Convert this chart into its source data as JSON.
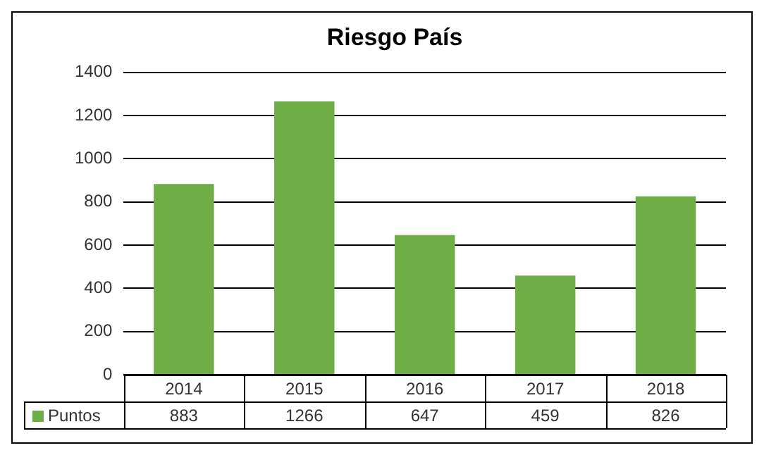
{
  "chart_data": {
    "type": "bar",
    "title": "Riesgo País",
    "categories": [
      "2014",
      "2015",
      "2016",
      "2017",
      "2018"
    ],
    "series": [
      {
        "name": "Puntos",
        "color": "#70ad47",
        "values": [
          883,
          1266,
          647,
          459,
          826
        ]
      }
    ],
    "ylim": [
      0,
      1400
    ],
    "yticks": [
      0,
      200,
      400,
      600,
      800,
      1000,
      1200,
      1400
    ],
    "grid": "y",
    "legend": "bottom",
    "data_labels": true
  }
}
